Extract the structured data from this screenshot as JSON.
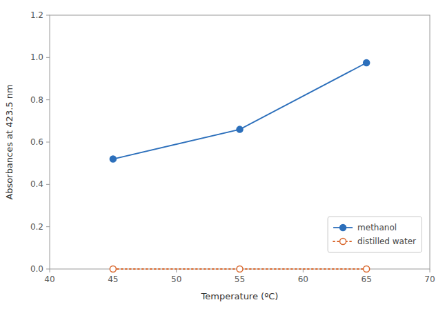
{
  "chart_data": {
    "type": "line",
    "x_label": "Temperature (ºC)",
    "y_label": "Absorbances at 423.5 nm",
    "x": [
      45,
      55,
      65
    ],
    "series": [
      {
        "name": "methanol",
        "values": [
          0.52,
          0.66,
          0.975
        ],
        "line_style": "solid",
        "marker": "circle"
      },
      {
        "name": "distilled water",
        "values": [
          0.0,
          0.0,
          0.0
        ],
        "line_style": "dotted",
        "marker": "open-circle"
      }
    ],
    "xlim": [
      40,
      70
    ],
    "ylim": [
      0,
      1.2
    ],
    "xticks": [
      40,
      45,
      50,
      55,
      60,
      65,
      70
    ],
    "yticks": [
      {
        "value": 0.0,
        "label": "0.0"
      },
      0.2,
      0.4,
      0.6,
      0.8,
      {
        "value": 1.0,
        "label": "1.0"
      },
      1.2
    ],
    "grid": false,
    "legend": "lower right"
  }
}
